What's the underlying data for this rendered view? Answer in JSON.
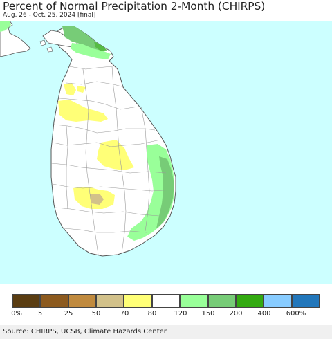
{
  "title": "Percent of Normal Precipitation 2-Month (CHIRPS)",
  "subtitle": "Aug. 26 - Oct. 25, 2024 [final]",
  "source": "Source: CHIRPS, UCSB, Climate Hazards Center",
  "colors": {
    "ocean": "#ccffff",
    "land": "#ffffff",
    "border": "#555555",
    "district": "#999999"
  },
  "legend": {
    "swatches": [
      "#5a3d12",
      "#8c5a1e",
      "#c08a3e",
      "#d2c18a",
      "#ffff77",
      "#ffffff",
      "#99ff99",
      "#77cc77",
      "#33aa11",
      "#88ccff",
      "#2277bb"
    ],
    "labels": [
      "0%",
      "5",
      "25",
      "50",
      "70",
      "80",
      "120",
      "150",
      "200",
      "400",
      "600%"
    ]
  }
}
